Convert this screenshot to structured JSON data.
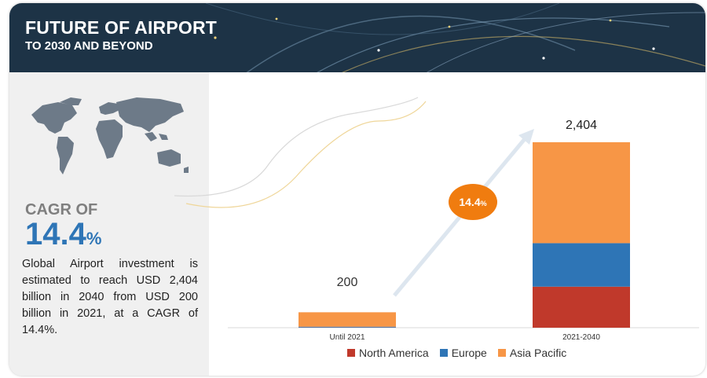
{
  "header": {
    "title": "FUTURE OF AIRPORT",
    "subtitle": "TO 2030 AND BEYOND"
  },
  "left_panel": {
    "cagr_label": "CAGR OF",
    "cagr_value": "14.4",
    "cagr_unit": "%",
    "description": "Global Airport investment is estimated to reach USD 2,404 billion in 2040 from USD 200 billion in 2021, at a CAGR of 14.4%."
  },
  "growth_badge": {
    "value": "14.4",
    "unit": "%"
  },
  "colors": {
    "header_bg": "#1d3346",
    "north_america": "#c0392b",
    "europe": "#2e75b6",
    "asia_pacific": "#f79646",
    "badge": "#f07c0f",
    "accent_blue": "#2e75b6"
  },
  "chart_data": {
    "type": "bar",
    "stacked": true,
    "categories": [
      "Until 2021",
      "2021-2040"
    ],
    "series": [
      {
        "name": "North America",
        "values": [
          3,
          532
        ]
      },
      {
        "name": "Europe",
        "values": [
          10,
          564
        ]
      },
      {
        "name": "Asia Pacific",
        "values": [
          187,
          1308
        ]
      }
    ],
    "totals": [
      "200",
      "2,404"
    ],
    "legend": [
      "North America",
      "Europe",
      "Asia Pacific"
    ],
    "legend_position": "bottom",
    "grid": false
  }
}
